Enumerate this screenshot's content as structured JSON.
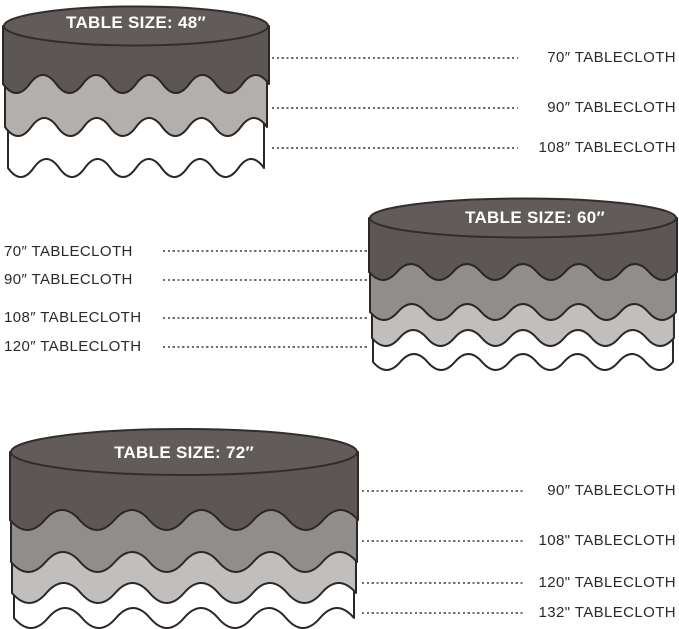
{
  "tables": [
    {
      "title": "TABLE SIZE: 48″",
      "table_size": "48″",
      "label_side": "right",
      "tablecloths": [
        "70″ TABLECLOTH",
        "90″ TABLECLOTH",
        "108″ TABLECLOTH"
      ]
    },
    {
      "title": "TABLE SIZE: 60″",
      "table_size": "60″",
      "label_side": "left",
      "tablecloths": [
        "70″ TABLECLOTH",
        "90″ TABLECLOTH",
        "108″ TABLECLOTH",
        "120″ TABLECLOTH"
      ]
    },
    {
      "title": "TABLE SIZE: 72″",
      "table_size": "72″",
      "label_side": "right",
      "tablecloths": [
        "90″ TABLECLOTH",
        "108\" TABLECLOTH",
        "120\" TABLECLOTH",
        "132\" TABLECLOTH"
      ]
    }
  ],
  "colors": {
    "table_dark": "#5c5654",
    "ellipse_top": "#615c59",
    "ellipse_outline": "#332e2c",
    "wave_outline": "#2b2725",
    "cloth_medium": "#908d8b",
    "cloth_light": "#c1bfbd",
    "cloth_light_48": "#b2afad",
    "cloth_white": "#ffffff",
    "label_text": "#2d2926",
    "leader_line": "#6f6f6f",
    "background": "#ffffff"
  }
}
